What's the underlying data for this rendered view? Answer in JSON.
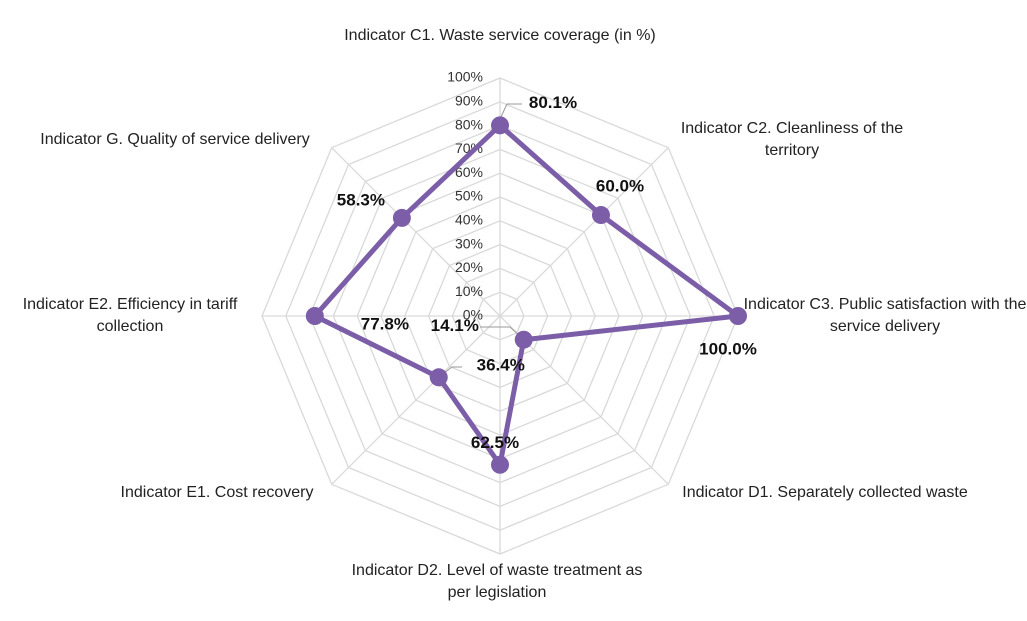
{
  "chart_data": {
    "type": "radar",
    "categories": [
      "Indicator C1. Waste service coverage (in %)",
      "Indicator C2. Cleanliness of the territory",
      "Indicator C3. Public satisfaction with the service delivery",
      "Indicator D1. Separately collected waste",
      "Indicator D2. Level of waste treatment as per legislation",
      "Indicator E1. Cost recovery",
      "Indicator E2. Efficiency in tariff collection",
      "Indicator G. Quality of service delivery"
    ],
    "values": [
      80.1,
      60.0,
      100.0,
      14.1,
      62.5,
      36.4,
      77.8,
      58.3
    ],
    "value_labels": [
      "80.1%",
      "60.0%",
      "100.0%",
      "14.1%",
      "62.5%",
      "36.4%",
      "77.8%",
      "58.3%"
    ],
    "color": "#7b5ea7",
    "ylim": [
      0,
      100
    ],
    "yticks": [
      {
        "value": 0,
        "label": "0%"
      },
      {
        "value": 10,
        "label": "10%"
      },
      {
        "value": 20,
        "label": "20%"
      },
      {
        "value": 30,
        "label": "30%"
      },
      {
        "value": 40,
        "label": "40%"
      },
      {
        "value": 50,
        "label": "50%"
      },
      {
        "value": 60,
        "label": "60%"
      },
      {
        "value": 70,
        "label": "70%"
      },
      {
        "value": 80,
        "label": "80%"
      },
      {
        "value": 90,
        "label": "90%"
      },
      {
        "value": 100,
        "label": "100%"
      }
    ],
    "grid": true
  }
}
